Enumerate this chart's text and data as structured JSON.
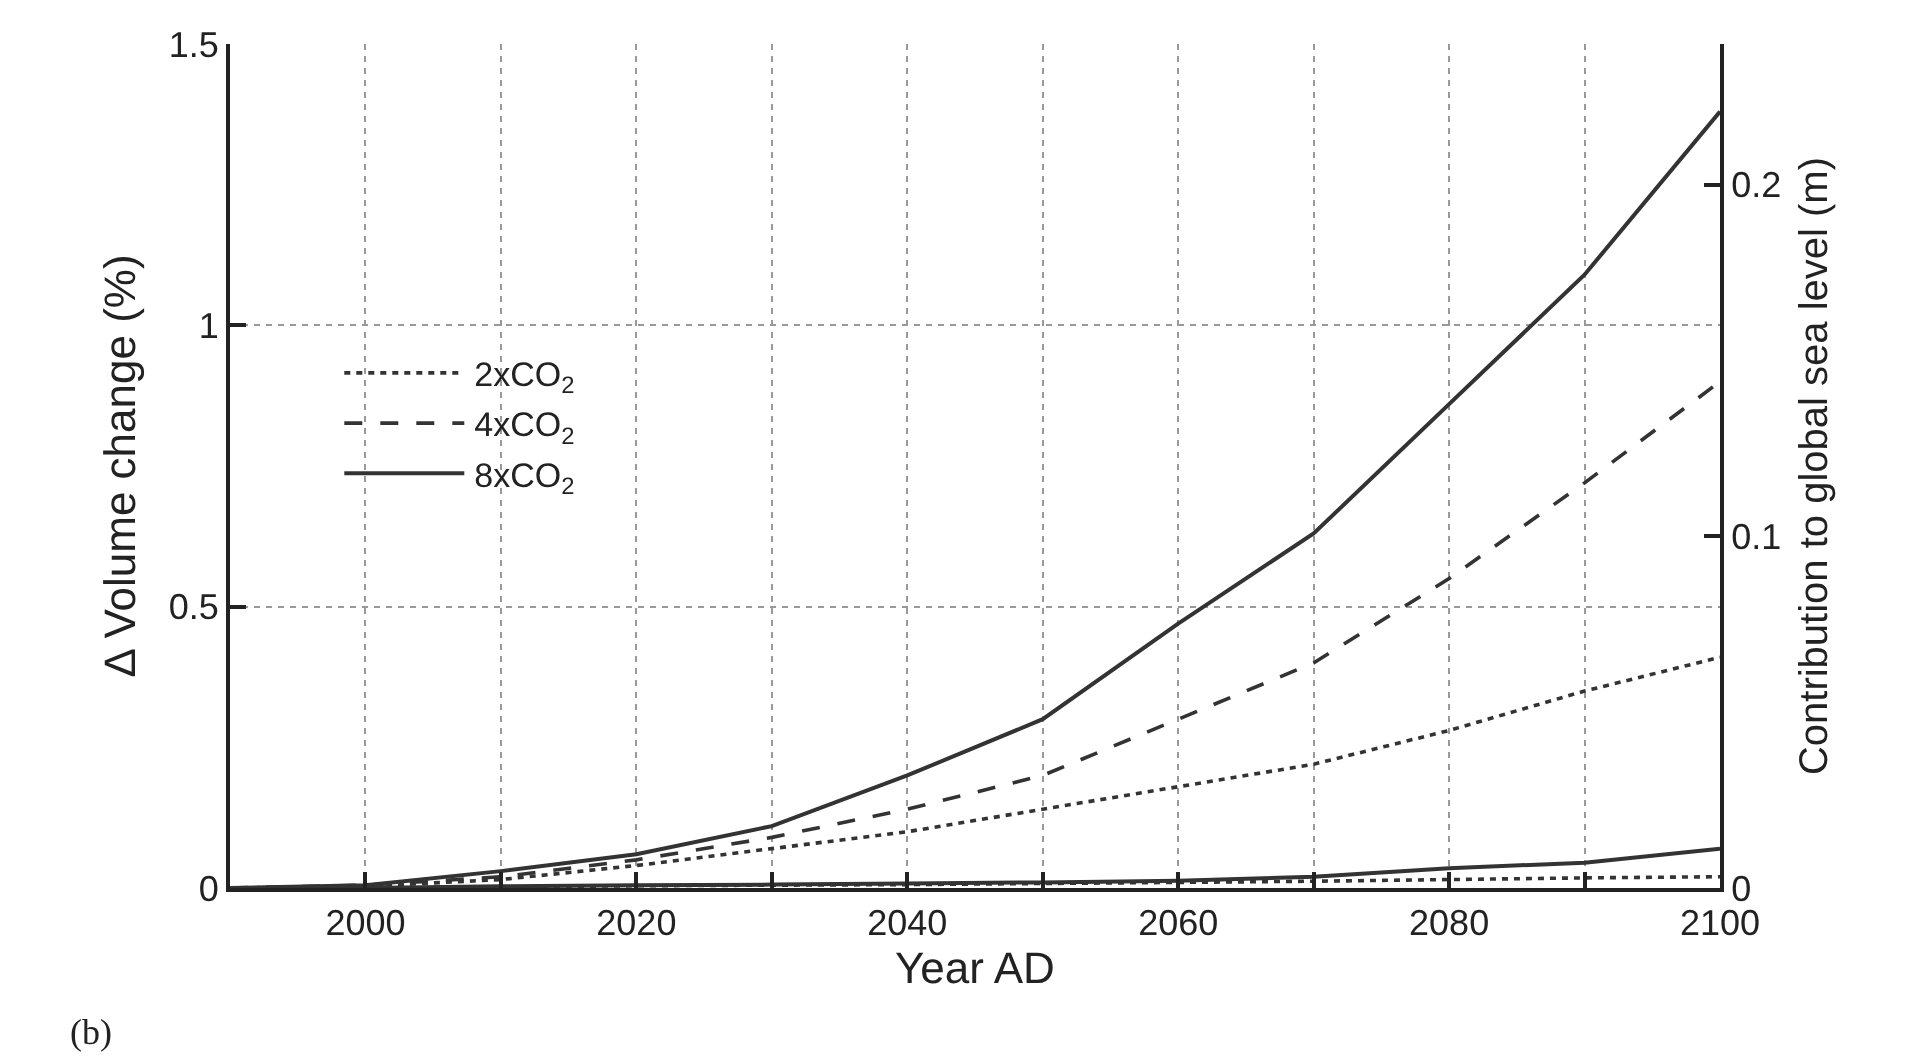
{
  "chart_data": {
    "type": "line",
    "x": [
      1990,
      2000,
      2010,
      2020,
      2030,
      2040,
      2050,
      2060,
      2070,
      2080,
      2090,
      2100
    ],
    "series": [
      {
        "name": "2xCO$_{2}$",
        "color": "#333333",
        "line_style": "dotted",
        "values": [
          0,
          0.003,
          0.015,
          0.04,
          0.07,
          0.1,
          0.14,
          0.18,
          0.22,
          0.28,
          0.35,
          0.41
        ]
      },
      {
        "name": "4xCO$_{2}$",
        "color": "#333333",
        "line_style": "dashed",
        "values": [
          0,
          0.005,
          0.02,
          0.05,
          0.09,
          0.14,
          0.2,
          0.3,
          0.4,
          0.55,
          0.72,
          0.9
        ]
      },
      {
        "name": "8xCO$_{2}$",
        "color": "#333333",
        "line_style": "solid",
        "values": [
          0,
          0.005,
          0.03,
          0.06,
          0.11,
          0.2,
          0.3,
          0.47,
          0.63,
          0.86,
          1.09,
          1.38
        ]
      },
      {
        "color": "#333333",
        "line_style": "dotted",
        "values": [
          0,
          0,
          0.002,
          0.004,
          0.005,
          0.006,
          0.008,
          0.01,
          0.012,
          0.015,
          0.018,
          0.02
        ]
      },
      {
        "color": "#333333",
        "line_style": "solid",
        "values": [
          0,
          0,
          0.003,
          0.005,
          0.006,
          0.008,
          0.01,
          0.013,
          0.02,
          0.035,
          0.045,
          0.07
        ]
      }
    ],
    "xlabel": "Year AD",
    "ylabel": "Δ Volume change (%)",
    "y2label": "Contribution to global sea level (m)",
    "xlim": [
      1990,
      2100
    ],
    "xticks": [
      2000,
      {
        "value": 2010,
        "label": null
      },
      2020,
      {
        "value": 2030,
        "label": null
      },
      2040,
      {
        "value": 2050,
        "label": null
      },
      2060,
      {
        "value": 2070,
        "label": null
      },
      2080,
      {
        "value": 2090,
        "label": null
      },
      2100
    ],
    "ylim": [
      0,
      1.5
    ],
    "yticks": [
      0,
      0.5,
      1,
      1.5
    ],
    "y2lim": [
      0,
      0.24
    ],
    "y2ticks": [
      0,
      0.1,
      0.2
    ],
    "grid": true,
    "legend": "left",
    "annotations": [
      "(b)"
    ]
  }
}
